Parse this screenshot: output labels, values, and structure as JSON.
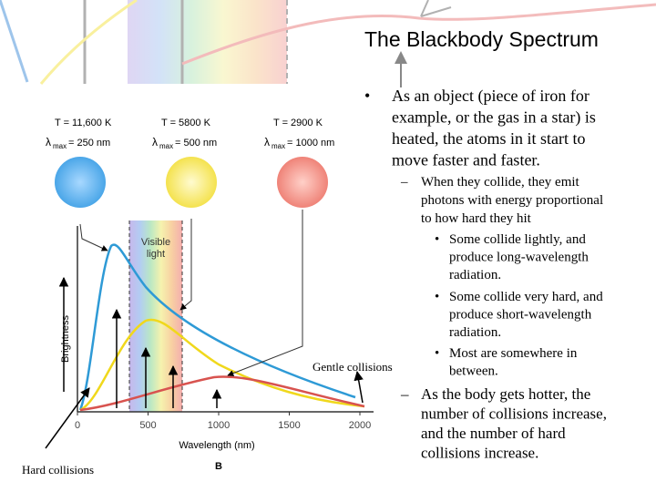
{
  "title": "The Blackbody Spectrum",
  "bullets": [
    {
      "marker": "•",
      "lines": [
        "As an object (piece of iron for",
        "example, or the gas in a star) is",
        "heated, the atoms in it start to",
        "move faster and faster."
      ]
    },
    {
      "marker": "–",
      "lines": [
        "When they collide, they emit",
        "photons with energy proportional",
        "to how hard they hit"
      ]
    },
    {
      "marker": "•",
      "lines": [
        "Some collide lightly, and",
        "produce long-wavelength",
        "radiation."
      ]
    },
    {
      "marker": "•",
      "lines": [
        "Some collide very hard, and",
        "produce short-wavelength",
        "radiation."
      ]
    },
    {
      "marker": "•",
      "lines": [
        "Most are somewhere in",
        "between."
      ]
    },
    {
      "marker": "–",
      "lines": [
        "As the body gets hotter, the",
        "number of collisions increase,",
        "and the number of hard",
        "collisions increase."
      ]
    }
  ],
  "figure": {
    "stars": [
      {
        "temp": "T = 11,600 K",
        "lambda": "λ",
        "sub": "max",
        "peak": "= 250 nm"
      },
      {
        "temp": "T = 5800 K",
        "lambda": "λ",
        "sub": "max",
        "peak": "= 500 nm"
      },
      {
        "temp": "T = 2900 K",
        "lambda": "λ",
        "sub": "max",
        "peak": "= 1000 nm"
      }
    ],
    "band_label": [
      "Visible",
      "light"
    ],
    "y_label": "Brightness",
    "x_label": "Wavelength (nm)",
    "x_ticks": [
      "0",
      "500",
      "1000",
      "1500",
      "2000"
    ],
    "panel": "B"
  },
  "annotations": {
    "gentle": "Gentle collisions",
    "hard": "Hard collisions"
  }
}
